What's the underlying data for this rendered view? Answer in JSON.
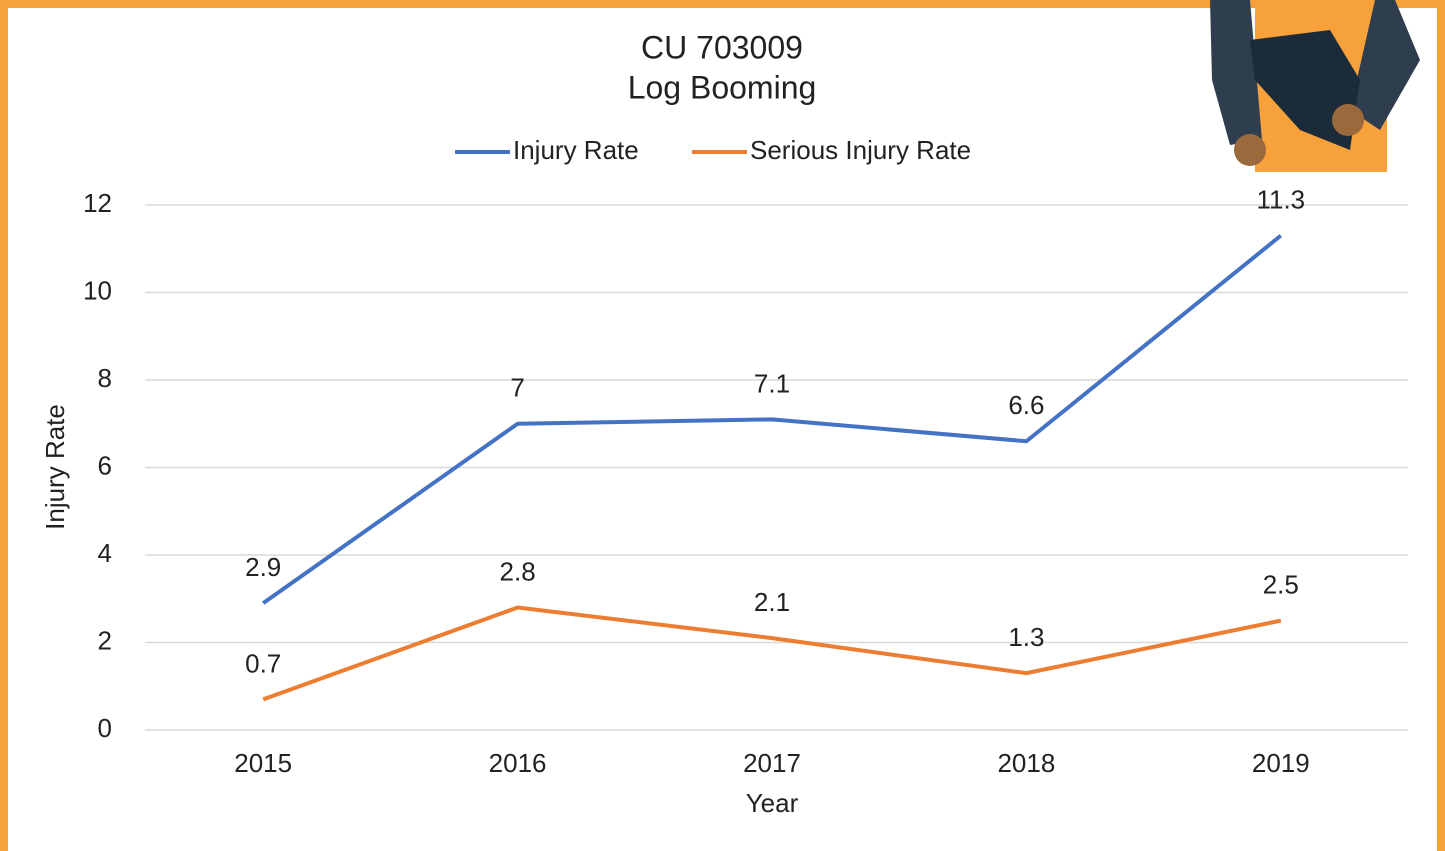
{
  "chart_data": {
    "type": "line",
    "title": "CU 703009",
    "subtitle": "Log Booming",
    "x_label": "Year",
    "y_label": "Injury Rate",
    "categories": [
      "2015",
      "2016",
      "2017",
      "2018",
      "2019"
    ],
    "series": [
      {
        "name": "Injury Rate",
        "color": "#4472c4",
        "values": [
          2.9,
          7,
          7.1,
          6.6,
          11.3
        ]
      },
      {
        "name": "Serious Injury Rate",
        "color": "#ed7d31",
        "values": [
          0.7,
          2.8,
          2.1,
          1.3,
          2.5
        ]
      }
    ],
    "ylim": [
      0,
      12
    ],
    "yticks": [
      0,
      2,
      4,
      6,
      8,
      10,
      12
    ],
    "grid": true,
    "legend": "top"
  }
}
